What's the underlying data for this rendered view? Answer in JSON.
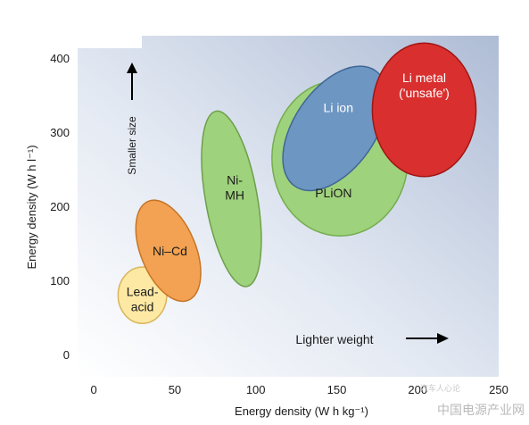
{
  "chart_data": {
    "type": "bubble-region",
    "xlabel": "Energy density (W h kg⁻¹)",
    "ylabel": "Energy density (W h l⁻¹)",
    "xlim": [
      -10,
      250
    ],
    "ylim": [
      -30,
      430
    ],
    "x_ticks": [
      0,
      50,
      100,
      150,
      200,
      250
    ],
    "y_ticks": [
      0,
      100,
      200,
      300,
      400
    ],
    "grid": false,
    "annotations": {
      "up_arrow": "Smaller size",
      "right_arrow": "Lighter weight"
    },
    "regions": [
      {
        "label": [
          "PLiON"
        ],
        "cx": 152,
        "cy": 265,
        "rx": 42,
        "ry": 105,
        "angle": 0,
        "fill": "#9fd27c",
        "stroke": "#74ad4f",
        "label_pos": [
          148,
          218
        ]
      },
      {
        "label": [
          "Lead-",
          "acid"
        ],
        "cx": 30,
        "cy": 80,
        "rx": 15,
        "ry": 38,
        "angle": 0,
        "fill": "#fde9a4",
        "stroke": "#d9b55a",
        "label_pos": [
          30,
          75
        ]
      },
      {
        "label": [
          "Ni–Cd"
        ],
        "cx": 46,
        "cy": 140,
        "rx": 17,
        "ry": 72,
        "angle": -22,
        "fill": "#f2a252",
        "stroke": "#c57526",
        "label_pos": [
          47,
          140
        ]
      },
      {
        "label": [
          "Ni-",
          "MH"
        ],
        "cx": 85,
        "cy": 210,
        "rx": 16,
        "ry": 120,
        "angle": -10,
        "fill": "#9fd27c",
        "stroke": "#6e9f4c",
        "label_pos": [
          87,
          225
        ]
      },
      {
        "label": [
          "Li ion"
        ],
        "cx": 149,
        "cy": 305,
        "rx": 25,
        "ry": 95,
        "angle": 35,
        "fill": "#6e96c2",
        "stroke": "#3f6796",
        "label_pos": [
          151,
          333
        ]
      },
      {
        "label": [
          "Li metal",
          "('unsafe')"
        ],
        "cx": 204,
        "cy": 330,
        "rx": 32,
        "ry": 90,
        "angle": 0,
        "fill": "#d9302f",
        "stroke": "#a01513",
        "label_pos": [
          204,
          363
        ]
      }
    ]
  },
  "watermark": "中国电源产业网",
  "watermark_small": "汽车人心论"
}
